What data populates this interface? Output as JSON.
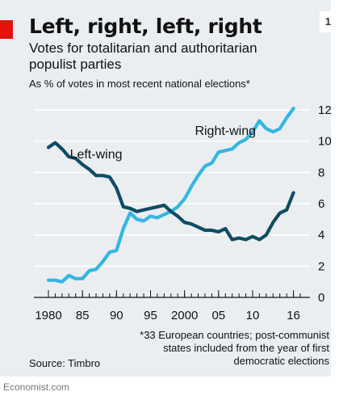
{
  "header": {
    "title": "Left, right, left, right",
    "badge": "1",
    "subtitle": "Votes for totalitarian and authoritarian populist parties",
    "unit_note": "As % of votes in most recent national elections*"
  },
  "footer": {
    "footnote": "*33 European countries; post-communist states included from the year of first democratic elections",
    "source": "Source: Timbro",
    "credit": "Economist.com"
  },
  "colors": {
    "accent": "#e3120b",
    "right_wing": "#34b6e4",
    "left_wing": "#0f4c66",
    "background": "#ebeef1"
  },
  "chart_data": {
    "type": "line",
    "title": "Left, right, left, right",
    "ylim": [
      0,
      12
    ],
    "y_ticks": [
      "0",
      "2",
      "4",
      "6",
      "8",
      "10",
      "12"
    ],
    "x_tick_labels": [
      {
        "x": 1980,
        "label": "1980"
      },
      {
        "x": 1985,
        "label": "85"
      },
      {
        "x": 1990,
        "label": "90"
      },
      {
        "x": 1995,
        "label": "95"
      },
      {
        "x": 2000,
        "label": "2000"
      },
      {
        "x": 2005,
        "label": "05"
      },
      {
        "x": 2010,
        "label": "10"
      },
      {
        "x": 2016,
        "label": "16"
      }
    ],
    "xlim": [
      1980,
      2017
    ],
    "grid": true,
    "series": [
      {
        "name": "Right-wing",
        "label_x": 2006,
        "label_y": 10.4,
        "x": [
          1980,
          1981,
          1982,
          1983,
          1984,
          1985,
          1986,
          1987,
          1988,
          1989,
          1990,
          1991,
          1992,
          1993,
          1994,
          1995,
          1996,
          1997,
          1998,
          1999,
          2000,
          2001,
          2002,
          2003,
          2004,
          2005,
          2006,
          2007,
          2008,
          2009,
          2010,
          2011,
          2012,
          2013,
          2014,
          2015,
          2016
        ],
        "values": [
          1.1,
          1.1,
          1.0,
          1.4,
          1.2,
          1.2,
          1.7,
          1.8,
          2.3,
          2.9,
          3.0,
          4.4,
          5.4,
          5.0,
          4.9,
          5.2,
          5.1,
          5.3,
          5.5,
          5.8,
          6.3,
          7.1,
          7.8,
          8.4,
          8.6,
          9.3,
          9.4,
          9.5,
          9.9,
          10.1,
          10.6,
          11.3,
          10.8,
          10.6,
          10.8,
          11.5,
          12.1
        ]
      },
      {
        "name": "Left-wing",
        "label_x": 1987,
        "label_y": 8.9,
        "x": [
          1980,
          1981,
          1982,
          1983,
          1984,
          1985,
          1986,
          1987,
          1988,
          1989,
          1990,
          1991,
          1992,
          1993,
          1994,
          1995,
          1996,
          1997,
          1998,
          1999,
          2000,
          2001,
          2002,
          2003,
          2004,
          2005,
          2006,
          2007,
          2008,
          2009,
          2010,
          2011,
          2012,
          2013,
          2014,
          2015,
          2016
        ],
        "values": [
          9.6,
          9.9,
          9.5,
          9.0,
          8.9,
          8.5,
          8.2,
          7.8,
          7.8,
          7.7,
          7.0,
          5.8,
          5.7,
          5.5,
          5.6,
          5.7,
          5.8,
          5.9,
          5.5,
          5.2,
          4.8,
          4.7,
          4.5,
          4.3,
          4.3,
          4.2,
          4.4,
          3.7,
          3.8,
          3.7,
          3.9,
          3.7,
          4.0,
          4.8,
          5.4,
          5.6,
          6.7
        ]
      }
    ]
  }
}
